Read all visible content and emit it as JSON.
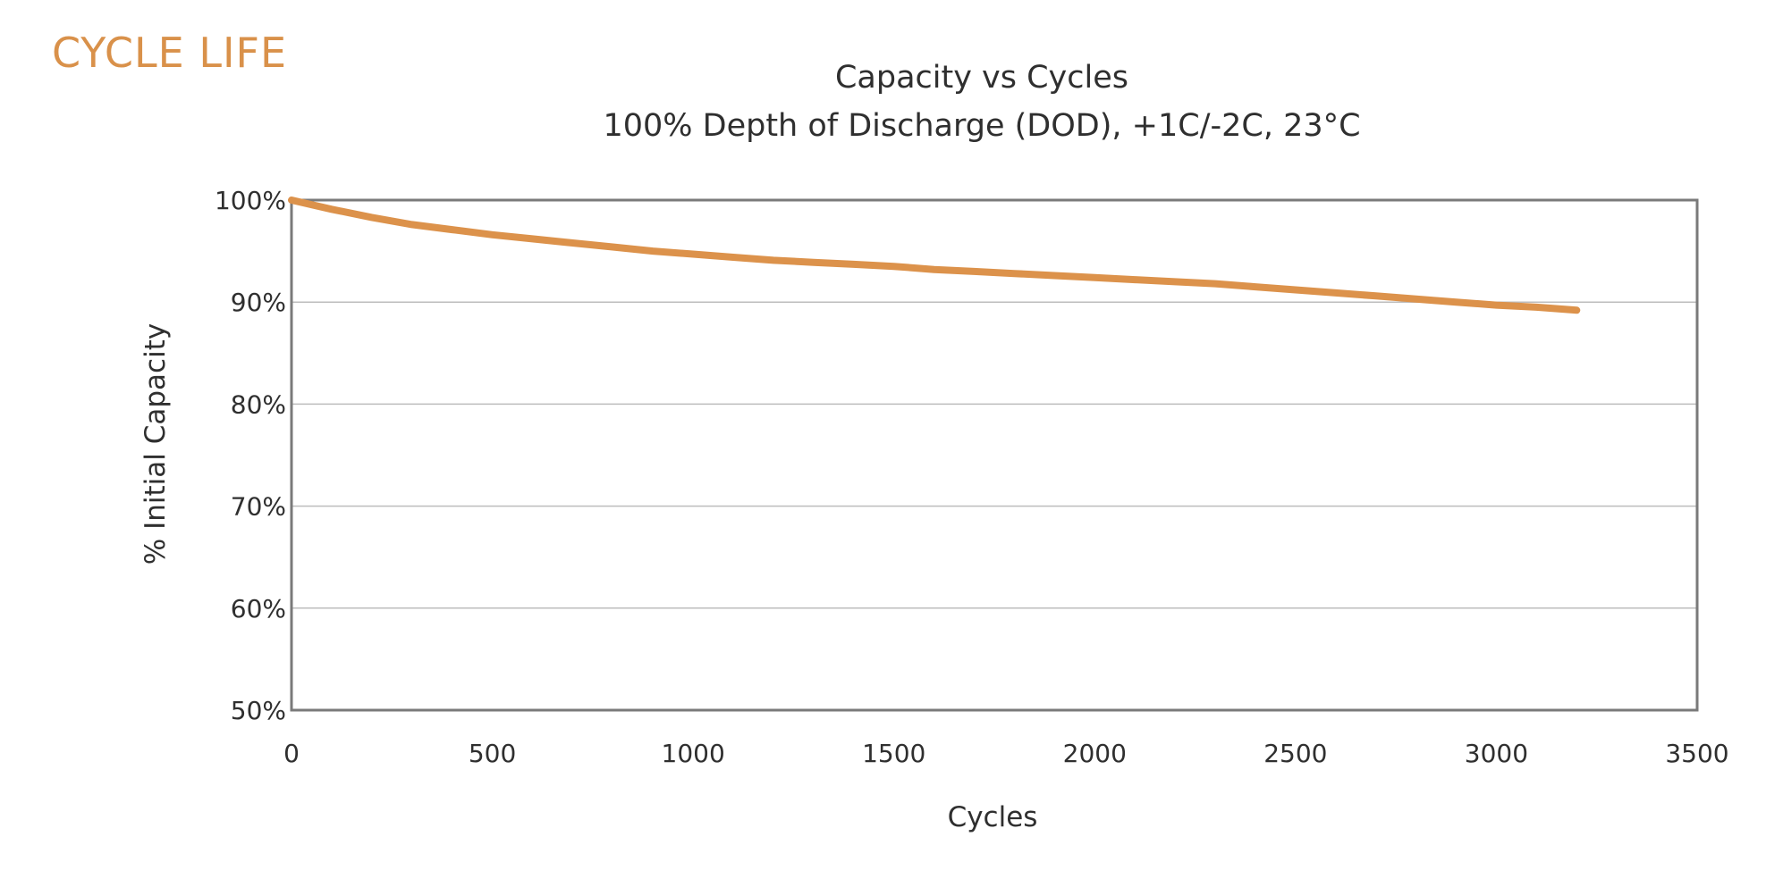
{
  "page": {
    "heading": "CYCLE LIFE"
  },
  "colors": {
    "accent": "#d9914a",
    "line": "#dc924b",
    "frame": "#7a7a7a",
    "grid": "#bdbdbd",
    "text": "#2f2f2f"
  },
  "chart_data": {
    "type": "line",
    "title": "Capacity vs Cycles",
    "subtitle": "100% Depth of Discharge (DOD), +1C/-2C, 23°C",
    "xlabel": "Cycles",
    "ylabel": "% Initial Capacity",
    "xlim": [
      0,
      3500
    ],
    "ylim": [
      50,
      100
    ],
    "xticks": [
      0,
      500,
      1000,
      1500,
      2000,
      2500,
      3000,
      3500
    ],
    "yticks": [
      50,
      60,
      70,
      80,
      90,
      100
    ],
    "xtick_labels": [
      "0",
      "500",
      "1000",
      "1500",
      "2000",
      "2500",
      "3000",
      "3500"
    ],
    "ytick_labels": [
      "50%",
      "60%",
      "70%",
      "80%",
      "90%",
      "100%"
    ],
    "grid": "horizontal",
    "legend": "none",
    "series": [
      {
        "x": [
          0,
          100,
          200,
          300,
          400,
          500,
          600,
          700,
          800,
          900,
          1000,
          1100,
          1200,
          1300,
          1400,
          1500,
          1600,
          1700,
          1800,
          1900,
          2000,
          2100,
          2200,
          2300,
          2400,
          2500,
          2600,
          2700,
          2800,
          2900,
          3000,
          3100,
          3200
        ],
        "y": [
          100,
          99.1,
          98.3,
          97.6,
          97.1,
          96.6,
          96.2,
          95.8,
          95.4,
          95.0,
          94.7,
          94.4,
          94.1,
          93.9,
          93.7,
          93.5,
          93.2,
          93.0,
          92.8,
          92.6,
          92.4,
          92.2,
          92.0,
          91.8,
          91.5,
          91.2,
          90.9,
          90.6,
          90.3,
          90.0,
          89.7,
          89.5,
          89.2
        ]
      }
    ]
  }
}
